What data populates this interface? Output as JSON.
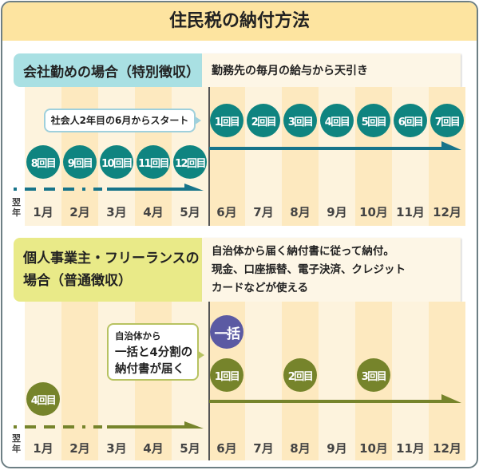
{
  "title": "住民税の納付方法",
  "months": [
    "1月",
    "2月",
    "3月",
    "4月",
    "5月",
    "6月",
    "7月",
    "8月",
    "9月",
    "10月",
    "11月",
    "12月"
  ],
  "next_year_label": "翌年",
  "section1": {
    "label": "会社勤めの場合（特別徴収）",
    "description": "勤務先の毎月の給与から天引き",
    "callout": "社会人2年目の6月からスタート",
    "color": "#0f8480",
    "payments_this_year": [
      {
        "month": "6月",
        "label": "1回目"
      },
      {
        "month": "7月",
        "label": "2回目"
      },
      {
        "month": "8月",
        "label": "3回目"
      },
      {
        "month": "9月",
        "label": "4回目"
      },
      {
        "month": "10月",
        "label": "5回目"
      },
      {
        "month": "11月",
        "label": "6回目"
      },
      {
        "month": "12月",
        "label": "7回目"
      }
    ],
    "payments_next_year": [
      {
        "month": "1月",
        "label": "8回目"
      },
      {
        "month": "2月",
        "label": "9回目"
      },
      {
        "month": "3月",
        "label": "10回目"
      },
      {
        "month": "4月",
        "label": "11回目"
      },
      {
        "month": "5月",
        "label": "12回目"
      }
    ]
  },
  "section2": {
    "label_line1": "個人事業主・フリーランスの",
    "label_line2": "場合（普通徴収）",
    "description_lines": [
      "自治体から届く納付書に従って納付。",
      "現金、口座振替、電子決済、クレジット",
      "カードなどが使える"
    ],
    "callout_lines": [
      "自治体から",
      "一括と4分割の",
      "納付書が届く"
    ],
    "color": "#76842b",
    "lump_sum": {
      "month": "6月",
      "label": "一括"
    },
    "installments": [
      {
        "month": "6月",
        "label": "1回目"
      },
      {
        "month": "8月",
        "label": "2回目"
      },
      {
        "month": "10月",
        "label": "3回目"
      },
      {
        "month": "1月",
        "label": "4回目"
      }
    ]
  }
}
